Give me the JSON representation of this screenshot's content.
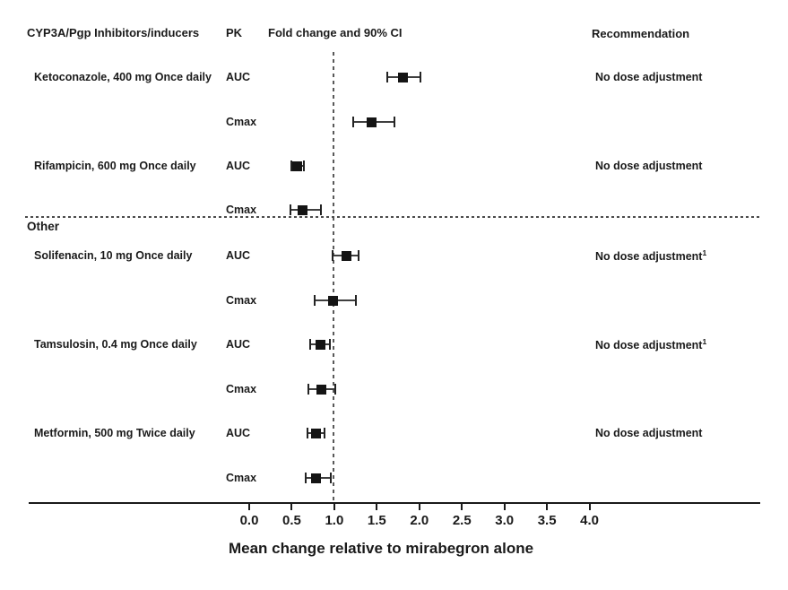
{
  "header": {
    "col_drug": "CYP3A/Pgp Inhibitors/inducers",
    "col_pk": "PK",
    "col_plot": "Fold change and 90% CI",
    "col_rec": "Recommendation"
  },
  "section_divider_label": "Other",
  "chart_data": {
    "type": "forest",
    "xlabel": "Mean change relative to mirabegron alone",
    "xlim": [
      0.0,
      4.0
    ],
    "reference_line": 1.0,
    "grid": false,
    "x_ticks": [
      {
        "value": 0.0,
        "label": "0.0"
      },
      {
        "value": 0.5,
        "label": "0.5"
      },
      {
        "value": 1.0,
        "label": "1.0"
      },
      {
        "value": 1.5,
        "label": "1.5"
      },
      {
        "value": 2.0,
        "label": "2.0"
      },
      {
        "value": 2.5,
        "label": "2.5"
      },
      {
        "value": 3.0,
        "label": "3.0"
      },
      {
        "value": 3.5,
        "label": "3.5"
      },
      {
        "value": 4.0,
        "label": "4.0"
      }
    ],
    "groups": [
      {
        "drug": "Ketoconazole, 400 mg Once daily",
        "section": "inhibitors_inducers",
        "recommendation": "No dose adjustment",
        "rec_sup": "",
        "rows": [
          {
            "pk": "AUC",
            "value": 1.81,
            "ci_low": 1.62,
            "ci_high": 2.01
          },
          {
            "pk": "Cmax",
            "value": 1.44,
            "ci_low": 1.22,
            "ci_high": 1.71
          }
        ]
      },
      {
        "drug": "Rifampicin, 600 mg Once daily",
        "section": "inhibitors_inducers",
        "recommendation": "No dose adjustment",
        "rec_sup": "",
        "rows": [
          {
            "pk": "AUC",
            "value": 0.56,
            "ci_low": 0.49,
            "ci_high": 0.64
          },
          {
            "pk": "Cmax",
            "value": 0.63,
            "ci_low": 0.48,
            "ci_high": 0.84
          }
        ]
      },
      {
        "drug": "Solifenacin, 10 mg Once daily",
        "section": "other",
        "recommendation": "No dose adjustment",
        "rec_sup": "1",
        "rows": [
          {
            "pk": "AUC",
            "value": 1.14,
            "ci_low": 0.98,
            "ci_high": 1.29
          },
          {
            "pk": "Cmax",
            "value": 0.99,
            "ci_low": 0.77,
            "ci_high": 1.25
          }
        ]
      },
      {
        "drug": "Tamsulosin, 0.4 mg Once daily",
        "section": "other",
        "recommendation": "No dose adjustment",
        "rec_sup": "1",
        "rows": [
          {
            "pk": "AUC",
            "value": 0.84,
            "ci_low": 0.72,
            "ci_high": 0.95
          },
          {
            "pk": "Cmax",
            "value": 0.85,
            "ci_low": 0.7,
            "ci_high": 1.01
          }
        ]
      },
      {
        "drug": "Metformin, 500 mg Twice daily",
        "section": "other",
        "recommendation": "No dose adjustment",
        "rec_sup": "",
        "rows": [
          {
            "pk": "AUC",
            "value": 0.78,
            "ci_low": 0.69,
            "ci_high": 0.88
          },
          {
            "pk": "Cmax",
            "value": 0.78,
            "ci_low": 0.66,
            "ci_high": 0.96
          }
        ]
      }
    ]
  },
  "colors": {
    "text": "#1a1a1a",
    "marker": "#141414",
    "ci_line": "#3f3f3f",
    "reference_dash": "#595959",
    "axis": "#1a1a1a",
    "background": "#ffffff"
  }
}
